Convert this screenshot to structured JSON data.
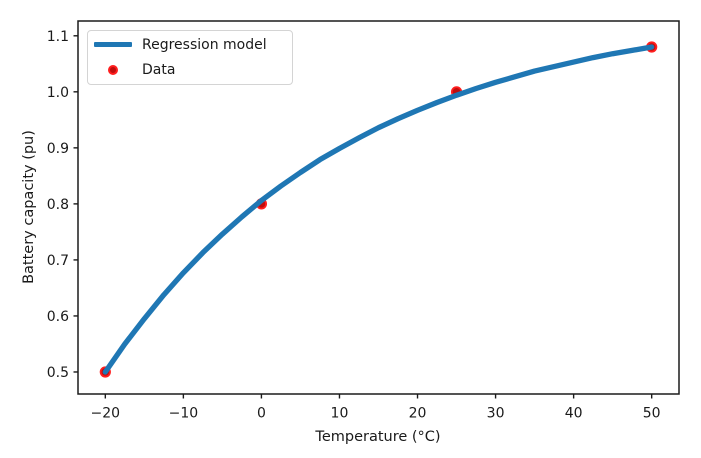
{
  "figure": {
    "background": "#ffffff"
  },
  "chart_data": {
    "type": "line",
    "title": "",
    "xlabel": "Temperature (°C)",
    "ylabel": "Battery capacity (pu)",
    "xlim": [
      -23.5,
      53.5
    ],
    "ylim": [
      0.4607,
      1.1264
    ],
    "grid": false,
    "frame_color": "#1b1b1b",
    "xticks": {
      "values": [
        -20,
        -10,
        0,
        10,
        20,
        30,
        40,
        50
      ],
      "labels": [
        "−20",
        "−10",
        "0",
        "10",
        "20",
        "30",
        "40",
        "50"
      ]
    },
    "yticks": {
      "values": [
        0.5,
        0.6,
        0.7,
        0.8,
        0.9,
        1.0,
        1.1
      ],
      "labels": [
        "0.5",
        "0.6",
        "0.7",
        "0.8",
        "0.9",
        "1.0",
        "1.1"
      ]
    },
    "legend": {
      "position": "upper-left",
      "entries": [
        {
          "label": "Regression model",
          "type": "line",
          "color": "#1f77b4"
        },
        {
          "label": "Data",
          "type": "marker",
          "face": "#c00d0d",
          "edge": "#ff1e1e"
        }
      ]
    },
    "series": [
      {
        "name": "Regression model",
        "type": "line",
        "color": "#1f77b4",
        "linewidth": 5.3,
        "x": [
          -20,
          -17.5,
          -15,
          -12.5,
          -10,
          -7.5,
          -5,
          -2.5,
          0,
          2.5,
          5,
          7.5,
          10,
          12.5,
          15,
          17.5,
          20,
          22.5,
          25,
          27.5,
          30,
          32.5,
          35,
          37.5,
          40,
          42.5,
          45,
          47.5,
          50
        ],
        "y": [
          0.5,
          0.55,
          0.595,
          0.638,
          0.677,
          0.713,
          0.746,
          0.777,
          0.806,
          0.832,
          0.856,
          0.879,
          0.899,
          0.918,
          0.936,
          0.952,
          0.967,
          0.981,
          0.994,
          1.006,
          1.017,
          1.027,
          1.037,
          1.045,
          1.053,
          1.061,
          1.068,
          1.074,
          1.08
        ]
      },
      {
        "name": "Data",
        "type": "scatter",
        "face": "#c00d0d",
        "edge": "#ff1e1e",
        "marker_radius": 4.7,
        "x": [
          -20,
          0,
          25,
          50
        ],
        "y": [
          0.5,
          0.8,
          1.0,
          1.08
        ]
      }
    ]
  }
}
